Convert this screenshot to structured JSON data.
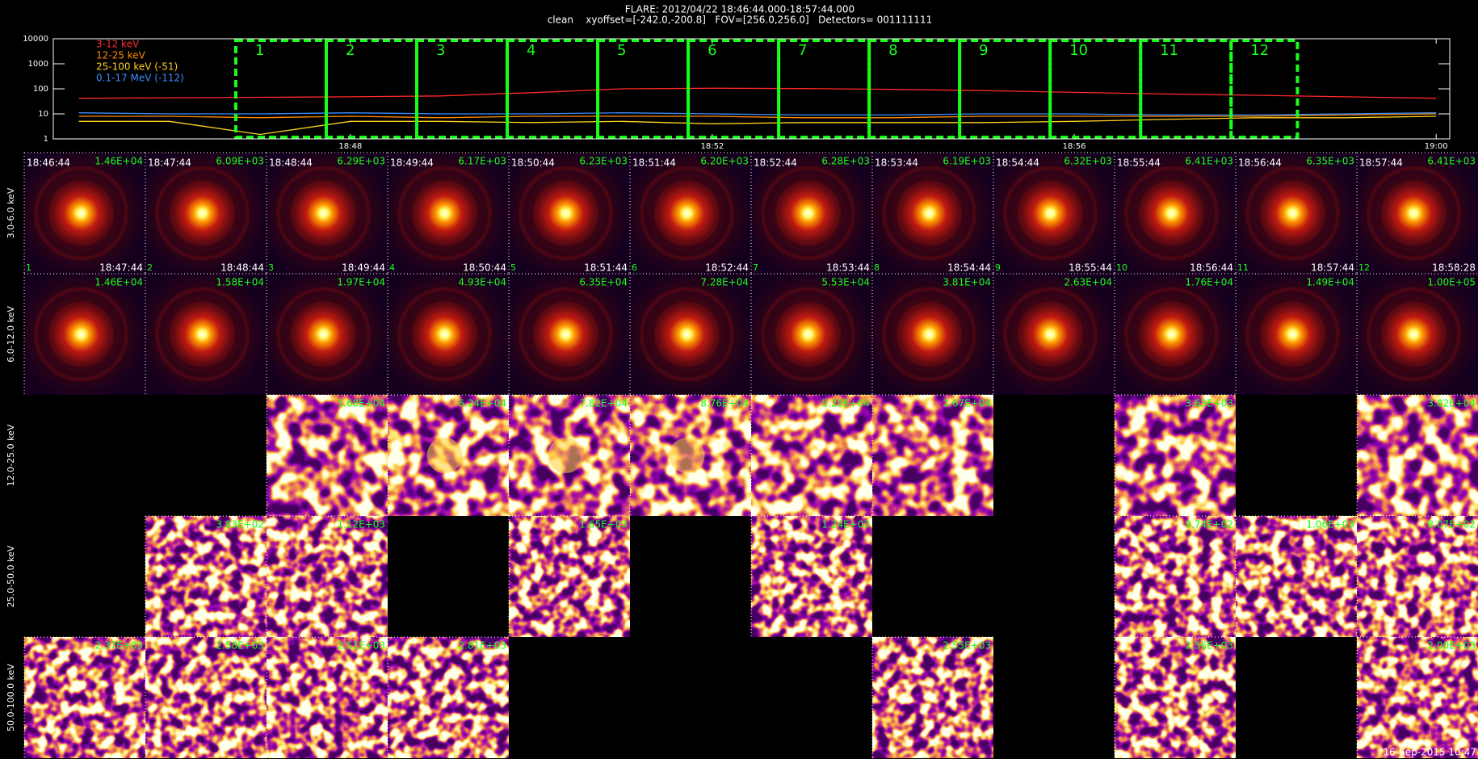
{
  "header": {
    "title": "FLARE: 2012/04/22 18:46:44.000-18:57:44.000",
    "subtitle": "clean    xyoffset=[-242.0,-200.8]   FOV=[256.0,256.0]   Detectors= 001111111"
  },
  "chart_data": {
    "type": "line",
    "ylog": true,
    "xlim": [
      "18:44:43",
      "19:00:09"
    ],
    "ylim": [
      1,
      10000
    ],
    "yticks": [
      1,
      10,
      100,
      1000,
      10000
    ],
    "xticks": [
      "18:48",
      "18:52",
      "18:56",
      "19:00"
    ],
    "x": [
      "18:45",
      "18:46",
      "18:47",
      "18:48",
      "18:49",
      "18:50",
      "18:51",
      "18:52",
      "18:53",
      "18:54",
      "18:55",
      "18:56",
      "18:57",
      "18:58",
      "18:59",
      "19:00"
    ],
    "series": [
      {
        "name": "3-12 keV",
        "color": "#ff2a2a",
        "values": [
          42,
          44,
          46,
          48,
          52,
          70,
          100,
          105,
          102,
          95,
          85,
          72,
          62,
          55,
          48,
          42
        ]
      },
      {
        "name": "12-25 keV",
        "color": "#ff8a00",
        "values": [
          8,
          8,
          7,
          8,
          7,
          8,
          8,
          8,
          7,
          7,
          8,
          8,
          8,
          8,
          9,
          10
        ]
      },
      {
        "name": "25-100 keV (-51)",
        "color": "#ffd21f",
        "values": [
          5,
          5,
          1.5,
          5,
          5,
          4.5,
          5,
          4,
          4.5,
          4.5,
          4.5,
          5,
          6,
          7,
          7,
          8
        ]
      },
      {
        "name": "0.1-17 MeV (-112)",
        "color": "#3b8fff",
        "values": [
          11,
          10,
          10,
          11,
          10,
          10,
          11,
          10,
          9,
          9,
          10,
          10,
          9,
          9,
          10,
          11
        ]
      }
    ]
  },
  "grid": {
    "bands": [
      "3.0-6.0 keV",
      "6.0-12.0 keV",
      "12.0-25.0 keV",
      "25.0-50.0 keV",
      "50.0-100.0 keV"
    ],
    "columns": [
      {
        "number": "1",
        "start": "18:46:44",
        "end": "18:47:44"
      },
      {
        "number": "2",
        "start": "18:47:44",
        "end": "18:48:44"
      },
      {
        "number": "3",
        "start": "18:48:44",
        "end": "18:49:44"
      },
      {
        "number": "4",
        "start": "18:49:44",
        "end": "18:50:44"
      },
      {
        "number": "5",
        "start": "18:50:44",
        "end": "18:51:44"
      },
      {
        "number": "6",
        "start": "18:51:44",
        "end": "18:52:44"
      },
      {
        "number": "7",
        "start": "18:52:44",
        "end": "18:53:44"
      },
      {
        "number": "8",
        "start": "18:53:44",
        "end": "18:54:44"
      },
      {
        "number": "9",
        "start": "18:54:44",
        "end": "18:55:44"
      },
      {
        "number": "10",
        "start": "18:55:44",
        "end": "18:56:44"
      },
      {
        "number": "11",
        "start": "18:56:44",
        "end": "18:57:44"
      },
      {
        "number": "12",
        "start": "18:57:44",
        "end": "18:58:28"
      }
    ],
    "peaks": [
      [
        "1.46E+04",
        "6.09E+03",
        "6.29E+03",
        "6.17E+03",
        "6.23E+03",
        "6.20E+03",
        "6.28E+03",
        "6.19E+03",
        "6.32E+03",
        "6.41E+03",
        "6.35E+03",
        "6.41E+03"
      ],
      [
        "1.46E+04",
        "1.58E+04",
        "1.97E+04",
        "4.93E+04",
        "6.35E+04",
        "7.28E+04",
        "5.53E+04",
        "3.81E+04",
        "2.63E+04",
        "1.76E+04",
        "1.49E+04",
        "1.00E+05"
      ],
      [
        null,
        null,
        "1.68E+04",
        "6.24E+04",
        "7.82E+04",
        "8.76E+04",
        "5.20E+04",
        "2.67E+04",
        null,
        "3.63E+03",
        null,
        "3.82E+04"
      ],
      [
        null,
        "3.83E+02",
        "1.12E+03",
        null,
        "1.65E+03",
        null,
        "1.24E+03",
        null,
        null,
        "9.74E+02",
        "1.06E+03",
        "8.07E+02"
      ],
      [
        "2.37E+03",
        "2.58E+03",
        "2.51E+03",
        "2.81E+03",
        null,
        null,
        null,
        "2.55E+03",
        null,
        "2.56E+03",
        null,
        "2.00E+03"
      ]
    ]
  },
  "footer": "16-Sep-2015 10:47"
}
